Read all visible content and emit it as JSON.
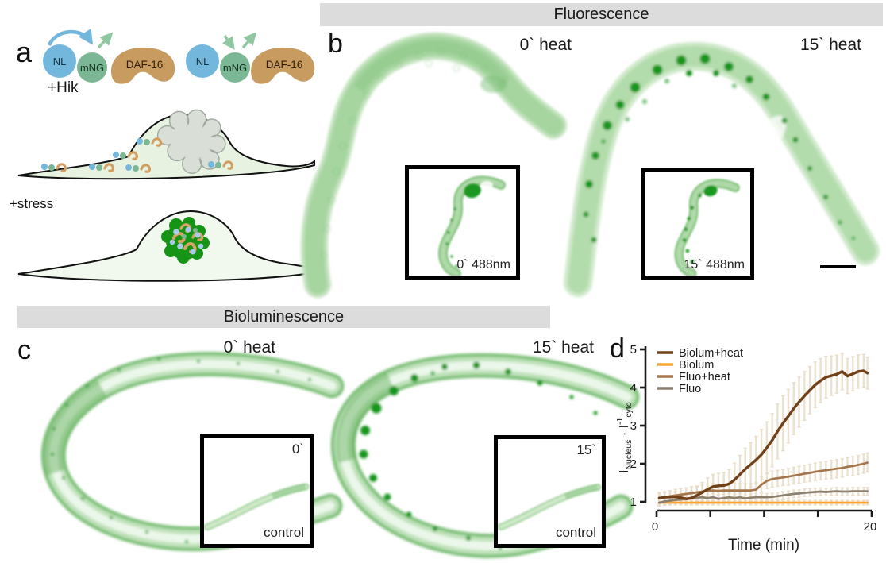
{
  "panel_a": {
    "label": "a",
    "hik_label": "+Hik",
    "stress_label": "+stress",
    "construct": {
      "nl": "NL",
      "mng": "mNG",
      "daf16": "DAF-16"
    },
    "colors": {
      "nl_blue": "#74b7dc",
      "mng_green": "#7cb795",
      "daf_tan": "#c89b61",
      "arrow_green": "#8fc8a0",
      "cell_fill": "#e7f2e1",
      "cell_stress_fill": "#f1f8ee",
      "nucleus_gray": "#d9dfd7",
      "nucleus_green": "#169416"
    }
  },
  "panel_b": {
    "label": "b",
    "header": "Fluorescence",
    "left_image_label": "0` heat",
    "right_image_label": "15` heat",
    "left_inset_label": "0` 488nm",
    "right_inset_label": "15` 488nm"
  },
  "panel_c": {
    "label": "c",
    "header": "Bioluminescence",
    "left_image_label": "0` heat",
    "right_image_label": "15` heat",
    "left_inset_time": "0`",
    "right_inset_time": "15`",
    "left_inset_caption": "control",
    "right_inset_caption": "control"
  },
  "panel_d": {
    "label": "d"
  },
  "header_bar_color": "#dcdcdc",
  "chart_data": {
    "type": "line",
    "title": "",
    "xlabel": "Time (min)",
    "ylabel": "I_Nucleus · I^-1_cyto",
    "ylabel_parts": {
      "i1": "I",
      "sub1": "Nucleus",
      "dot": " · ",
      "i2": "I",
      "sup2": "-1",
      "sub2": "cyto"
    },
    "xlim": [
      0,
      20
    ],
    "ylim": [
      1,
      5
    ],
    "xticks": [
      0,
      5,
      10,
      15,
      20
    ],
    "xtick_labels": [
      "0",
      "",
      "",
      "",
      "20"
    ],
    "yticks": [
      1,
      2,
      3,
      4,
      5
    ],
    "legend_position": "top-left",
    "grid": false,
    "error_band_color": "#e9dbc6",
    "x": [
      0.25,
      0.75,
      1.25,
      1.75,
      2.25,
      2.75,
      3.25,
      3.75,
      4.25,
      4.75,
      5.25,
      5.75,
      6.25,
      6.75,
      7.25,
      7.75,
      8.25,
      8.75,
      9.25,
      9.75,
      10.25,
      10.75,
      11.25,
      11.75,
      12.25,
      12.75,
      13.25,
      13.75,
      14.25,
      14.75,
      15.25,
      15.75,
      16.25,
      16.75,
      17.25,
      17.75,
      18.25,
      18.75,
      19.25,
      19.6
    ],
    "series": [
      {
        "name": "Biolum+heat",
        "color": "#71411a",
        "values": [
          1.1,
          1.12,
          1.13,
          1.13,
          1.11,
          1.08,
          1.1,
          1.17,
          1.25,
          1.33,
          1.4,
          1.42,
          1.43,
          1.47,
          1.58,
          1.72,
          1.86,
          1.98,
          2.1,
          2.24,
          2.42,
          2.62,
          2.85,
          3.06,
          3.25,
          3.45,
          3.62,
          3.78,
          3.93,
          4.07,
          4.18,
          4.27,
          4.31,
          4.35,
          4.42,
          4.3,
          4.36,
          4.42,
          4.44,
          4.38
        ],
        "err": [
          0.12,
          0.12,
          0.13,
          0.14,
          0.15,
          0.16,
          0.18,
          0.22,
          0.26,
          0.3,
          0.32,
          0.33,
          0.34,
          0.38,
          0.44,
          0.5,
          0.55,
          0.58,
          0.62,
          0.66,
          0.68,
          0.7,
          0.72,
          0.72,
          0.7,
          0.68,
          0.66,
          0.64,
          0.62,
          0.6,
          0.58,
          0.55,
          0.52,
          0.5,
          0.48,
          0.46,
          0.45,
          0.44,
          0.43,
          0.42
        ]
      },
      {
        "name": "Biolum",
        "color": "#f7a733",
        "values": [
          0.98,
          0.98,
          0.98,
          0.98,
          0.98,
          0.98,
          0.98,
          0.98,
          0.98,
          0.98,
          0.98,
          0.98,
          0.98,
          0.98,
          0.98,
          0.98,
          0.98,
          0.98,
          0.98,
          0.98,
          0.98,
          0.98,
          0.98,
          0.98,
          0.98,
          0.98,
          0.98,
          0.98,
          0.98,
          0.98,
          0.98,
          0.98,
          0.98,
          0.98,
          0.98,
          0.98,
          0.98,
          0.98,
          0.98,
          0.98
        ],
        "err": [
          0.06,
          0.06,
          0.06,
          0.06,
          0.06,
          0.06,
          0.06,
          0.06,
          0.06,
          0.06,
          0.06,
          0.06,
          0.06,
          0.06,
          0.06,
          0.06,
          0.06,
          0.06,
          0.06,
          0.06,
          0.06,
          0.06,
          0.06,
          0.06,
          0.06,
          0.06,
          0.06,
          0.06,
          0.06,
          0.06,
          0.06,
          0.06,
          0.06,
          0.06,
          0.06,
          0.06,
          0.06,
          0.06,
          0.06,
          0.06
        ]
      },
      {
        "name": "Fluo+heat",
        "color": "#a5764c",
        "values": [
          1.1,
          1.12,
          1.15,
          1.17,
          1.19,
          1.21,
          1.23,
          1.25,
          1.27,
          1.29,
          1.3,
          1.29,
          1.3,
          1.3,
          1.3,
          1.3,
          1.3,
          1.3,
          1.32,
          1.45,
          1.55,
          1.6,
          1.62,
          1.64,
          1.66,
          1.69,
          1.71,
          1.74,
          1.76,
          1.79,
          1.81,
          1.83,
          1.85,
          1.87,
          1.89,
          1.92,
          1.94,
          1.97,
          2.0,
          2.03
        ],
        "err": [
          0.15,
          0.15,
          0.15,
          0.16,
          0.16,
          0.16,
          0.17,
          0.17,
          0.17,
          0.18,
          0.18,
          0.18,
          0.18,
          0.18,
          0.18,
          0.18,
          0.18,
          0.18,
          0.19,
          0.2,
          0.2,
          0.21,
          0.21,
          0.21,
          0.22,
          0.22,
          0.22,
          0.22,
          0.23,
          0.23,
          0.23,
          0.23,
          0.24,
          0.24,
          0.24,
          0.24,
          0.25,
          0.25,
          0.25,
          0.25
        ]
      },
      {
        "name": "Fluo",
        "color": "#8c7f6e",
        "values": [
          0.98,
          1.01,
          1.03,
          1.05,
          1.06,
          1.07,
          1.09,
          1.11,
          1.12,
          1.1,
          1.12,
          1.08,
          1.1,
          1.12,
          1.1,
          1.12,
          1.09,
          1.11,
          1.12,
          1.12,
          1.12,
          1.13,
          1.15,
          1.17,
          1.19,
          1.21,
          1.22,
          1.24,
          1.25,
          1.26,
          1.27,
          1.26,
          1.27,
          1.28,
          1.27,
          1.27,
          1.28,
          1.28,
          1.28,
          1.28
        ],
        "err": [
          0.1,
          0.1,
          0.1,
          0.1,
          0.1,
          0.1,
          0.1,
          0.1,
          0.1,
          0.1,
          0.1,
          0.1,
          0.1,
          0.1,
          0.1,
          0.1,
          0.1,
          0.1,
          0.1,
          0.1,
          0.1,
          0.1,
          0.1,
          0.1,
          0.1,
          0.1,
          0.1,
          0.1,
          0.1,
          0.1,
          0.1,
          0.1,
          0.1,
          0.1,
          0.1,
          0.1,
          0.1,
          0.1,
          0.1,
          0.1
        ]
      }
    ]
  }
}
